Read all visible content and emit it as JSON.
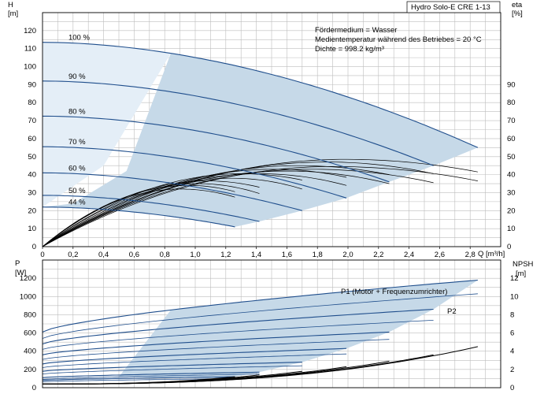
{
  "chart_data": [
    {
      "type": "line",
      "title": "Hydro Solo-E CRE 1-13",
      "notes": [
        "Fördermedium = Wasser",
        "Medientemperatur während des Betriebes = 20 °C",
        "Dichte = 998.2 kg/m³"
      ],
      "ylabel_left": "H",
      "yunit_left": "[m]",
      "ylabel_right": "eta",
      "yunit_right": "[%]",
      "xlabel": "Q [m³/h]",
      "xlim": [
        0,
        3
      ],
      "ylim_left": [
        0,
        130
      ],
      "ylim_right": [
        0,
        130
      ],
      "x_ticks": [
        "0",
        "0,2",
        "0,4",
        "0,6",
        "0,8",
        "1,0",
        "1,2",
        "1,4",
        "1,6",
        "1,8",
        "2,0",
        "2,2",
        "2,4",
        "2,6",
        "2,8"
      ],
      "y_ticks_left": [
        0,
        10,
        20,
        30,
        40,
        50,
        60,
        70,
        80,
        90,
        100,
        110,
        120
      ],
      "y_ticks_right": [
        0,
        10,
        20,
        30,
        40,
        50,
        60,
        70,
        80,
        90
      ],
      "grid": true,
      "operating_area_color": "#c6d9e8",
      "curve_color": "#1f4e8c",
      "speed_curves": [
        {
          "label": "100 %",
          "h0": 113.5,
          "qmax": 2.85,
          "hend": 55
        },
        {
          "label": "90 %",
          "h0": 92,
          "qmax": 2.56,
          "hend": 45
        },
        {
          "label": "80 %",
          "h0": 72.5,
          "qmax": 2.27,
          "hend": 36
        },
        {
          "label": "70 %",
          "h0": 55.5,
          "qmax": 1.99,
          "hend": 27
        },
        {
          "label": "60 %",
          "h0": 41,
          "qmax": 1.7,
          "hend": 20
        },
        {
          "label": "50 %",
          "h0": 28.5,
          "qmax": 1.42,
          "hend": 14
        },
        {
          "label": "44 %",
          "h0": 22,
          "qmax": 1.26,
          "hend": 11
        }
      ],
      "efficiency_curves": [
        {
          "peak": 48.5,
          "qpeak": 1.98,
          "qmax": 2.85,
          "qstart": 2.12,
          "eend": 41.5
        },
        {
          "peak": 47,
          "qpeak": 1.86,
          "qmax": 2.56,
          "qstart": 2.1,
          "eend": 40.5
        },
        {
          "peak": 45,
          "qpeak": 1.68,
          "qmax": 2.27,
          "qstart": 1.84,
          "eend": 40
        },
        {
          "peak": 43,
          "qpeak": 1.52,
          "qmax": 1.99,
          "qstart": 1.58,
          "eend": 38.5
        },
        {
          "peak": 40.5,
          "qpeak": 1.3,
          "qmax": 1.7,
          "qstart": 1.36,
          "eend": 37
        },
        {
          "peak": 36.5,
          "qpeak": 1.08,
          "qmax": 1.42,
          "qstart": 1.12,
          "eend": 33
        },
        {
          "peak": 34,
          "qpeak": 0.96,
          "qmax": 1.26,
          "qstart": 1.02,
          "eend": 30.5
        },
        {
          "peak": 44.5,
          "qpeak": 1.9,
          "qmax": 2.85,
          "qstart": 2.12,
          "eend": 36.5
        },
        {
          "peak": 43,
          "qpeak": 1.76,
          "qmax": 2.56,
          "qstart": 2.0,
          "eend": 35.5
        },
        {
          "peak": 42,
          "qpeak": 1.6,
          "qmax": 2.27,
          "qstart": 1.76,
          "eend": 35
        },
        {
          "peak": 40.5,
          "qpeak": 1.42,
          "qmax": 1.99,
          "qstart": 1.5,
          "eend": 34
        },
        {
          "peak": 38,
          "qpeak": 1.24,
          "qmax": 1.7,
          "qstart": 1.3,
          "eend": 32
        },
        {
          "peak": 35,
          "qpeak": 1.02,
          "qmax": 1.42,
          "qstart": 1.08,
          "eend": 29.5
        },
        {
          "peak": 32,
          "qpeak": 0.9,
          "qmax": 1.26,
          "qstart": 0.98,
          "eend": 27.5
        }
      ]
    },
    {
      "type": "line",
      "ylabel_left": "P",
      "yunit_left": "[W]",
      "ylabel_right": "NPSH",
      "yunit_right": "[m]",
      "xlim": [
        0,
        3
      ],
      "ylim_left": [
        0,
        1400
      ],
      "ylim_right": [
        0,
        14
      ],
      "y_ticks_left": [
        0,
        200,
        400,
        600,
        800,
        1000,
        1200
      ],
      "y_ticks_right": [
        0,
        2,
        4,
        6,
        8,
        10,
        12
      ],
      "grid": true,
      "series_labels": [
        "P1 (Motor + Frequenzumrichter)",
        "P2"
      ],
      "p1_curves": [
        {
          "p0": 610,
          "p1": 1180,
          "qmax": 2.85
        },
        {
          "p0": 480,
          "p1": 860,
          "qmax": 2.56
        },
        {
          "p0": 360,
          "p1": 610,
          "qmax": 2.27
        },
        {
          "p0": 260,
          "p1": 430,
          "qmax": 1.99
        },
        {
          "p0": 180,
          "p1": 280,
          "qmax": 1.7
        },
        {
          "p0": 110,
          "p1": 170,
          "qmax": 1.42
        },
        {
          "p0": 80,
          "p1": 120,
          "qmax": 1.26
        }
      ],
      "p2_curves": [
        {
          "p0": 540,
          "p1": 1030,
          "qmax": 2.85
        },
        {
          "p0": 420,
          "p1": 740,
          "qmax": 2.56
        },
        {
          "p0": 310,
          "p1": 530,
          "qmax": 2.27
        },
        {
          "p0": 220,
          "p1": 370,
          "qmax": 1.99
        },
        {
          "p0": 150,
          "p1": 240,
          "qmax": 1.7
        },
        {
          "p0": 90,
          "p1": 150,
          "qmax": 1.42
        },
        {
          "p0": 65,
          "p1": 100,
          "qmax": 1.26
        }
      ],
      "npsh_curves": [
        {
          "qmax": 2.85,
          "nend": 4.5
        },
        {
          "qmax": 2.56,
          "nend": 3.6
        },
        {
          "qmax": 2.27,
          "nend": 2.9
        },
        {
          "qmax": 1.99,
          "nend": 2.3
        },
        {
          "qmax": 1.7,
          "nend": 1.8
        },
        {
          "qmax": 1.42,
          "nend": 1.4
        },
        {
          "qmax": 1.26,
          "nend": 1.2
        }
      ]
    }
  ]
}
